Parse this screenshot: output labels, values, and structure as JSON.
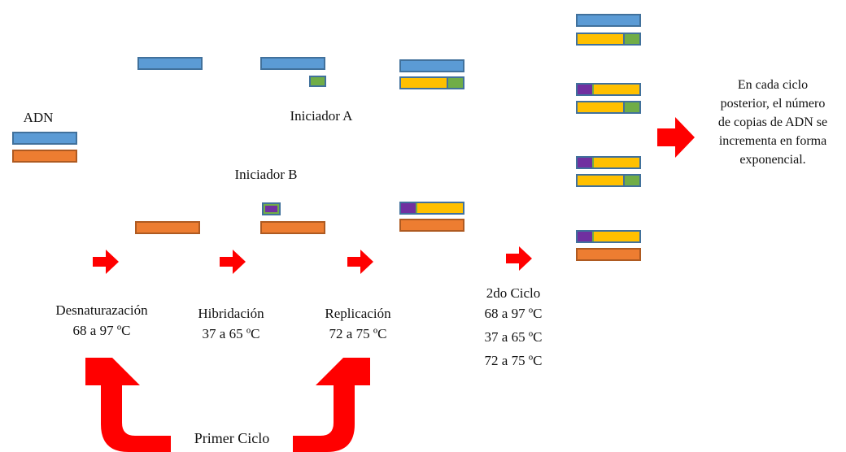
{
  "labels": {
    "adn": "ADN",
    "iniciador_a": "Iniciador A",
    "iniciador_b": "Iniciador B",
    "desnaturalizacion": "Desnaturazación",
    "desnaturalizacion_temp": "68 a 97 ºC",
    "hibridacion": "Hibridación",
    "hibridacion_temp": "37 a 65 ºC",
    "replicacion": "Replicación",
    "replicacion_temp": "72 a 75 ºC",
    "segundo_ciclo": "2do Ciclo",
    "segundo_ciclo_temp1": "68 a 97 ºC",
    "segundo_ciclo_temp2": "37 a 65 ºC",
    "segundo_ciclo_temp3": "72 a 75 ºC",
    "primer_ciclo": "Primer Ciclo",
    "nota_line1": "En cada ciclo",
    "nota_line2": "posterior, el número",
    "nota_line3": "de copias de ADN se",
    "nota_line4": "incrementa en forma",
    "nota_line5": "exponencial."
  },
  "colors": {
    "blue_strand": "#5b9bd5",
    "orange_strand": "#ed7d31",
    "yellow_strand": "#ffc000",
    "green_primer": "#70ad47",
    "purple_primer": "#7030a0",
    "arrow_red": "#ff0000"
  }
}
